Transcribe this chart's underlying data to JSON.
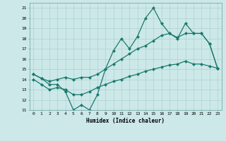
{
  "xlabel": "Humidex (Indice chaleur)",
  "ylabel": "",
  "xlim": [
    -0.5,
    23.5
  ],
  "ylim": [
    11,
    21.5
  ],
  "xticks": [
    0,
    1,
    2,
    3,
    4,
    5,
    6,
    7,
    8,
    9,
    10,
    11,
    12,
    13,
    14,
    15,
    16,
    17,
    18,
    19,
    20,
    21,
    22,
    23
  ],
  "yticks": [
    11,
    12,
    13,
    14,
    15,
    16,
    17,
    18,
    19,
    20,
    21
  ],
  "bg_color": "#cce8e8",
  "line_color": "#1a7a6e",
  "line1_x": [
    0,
    1,
    2,
    3,
    4,
    5,
    6,
    7,
    8,
    9,
    10,
    11,
    12,
    13,
    14,
    15,
    16,
    17,
    18,
    19,
    20,
    21,
    22,
    23
  ],
  "line1_y": [
    14.5,
    14.1,
    13.5,
    13.5,
    12.8,
    11.0,
    11.5,
    11.0,
    12.5,
    15.0,
    16.8,
    18.0,
    17.0,
    18.2,
    20.0,
    21.0,
    19.5,
    18.5,
    18.1,
    18.5,
    18.5,
    18.5,
    17.5,
    15.1
  ],
  "line2_x": [
    0,
    1,
    2,
    3,
    4,
    5,
    6,
    7,
    8,
    9,
    10,
    11,
    12,
    13,
    14,
    15,
    16,
    17,
    18,
    19,
    20,
    21,
    22,
    23
  ],
  "line2_y": [
    14.5,
    14.1,
    13.8,
    14.0,
    14.2,
    14.0,
    14.2,
    14.2,
    14.5,
    15.0,
    15.5,
    16.0,
    16.5,
    17.0,
    17.3,
    17.8,
    18.3,
    18.5,
    18.0,
    19.5,
    18.5,
    18.5,
    17.5,
    15.1
  ],
  "line3_x": [
    0,
    1,
    2,
    3,
    4,
    5,
    6,
    7,
    8,
    9,
    10,
    11,
    12,
    13,
    14,
    15,
    16,
    17,
    18,
    19,
    20,
    21,
    22,
    23
  ],
  "line3_y": [
    14.0,
    13.5,
    13.0,
    13.2,
    13.0,
    12.5,
    12.5,
    12.8,
    13.2,
    13.5,
    13.8,
    14.0,
    14.3,
    14.5,
    14.8,
    15.0,
    15.2,
    15.4,
    15.5,
    15.8,
    15.5,
    15.5,
    15.3,
    15.1
  ]
}
